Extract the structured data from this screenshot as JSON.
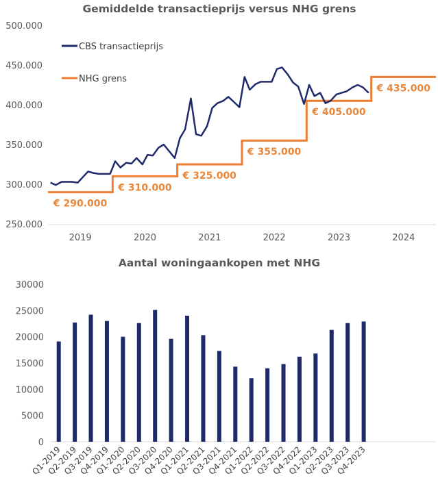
{
  "colors": {
    "cbs": "#1f2a6b",
    "nhg": "#ed7d31",
    "anno": "#e8863a",
    "axis": "#d9d9d9",
    "bar": "#1f2a6b"
  },
  "chart_data": [
    {
      "type": "line",
      "title": "Gemiddelde transactieprijs versus NHG grens",
      "ylim": [
        250000,
        500000
      ],
      "xlim": [
        2018.5,
        2024.5
      ],
      "yticks": [
        "250.000",
        "300.000",
        "350.000",
        "400.000",
        "450.000",
        "500.000"
      ],
      "xticks": [
        {
          "x": 2019,
          "label": "2019"
        },
        {
          "x": 2020,
          "label": "2020"
        },
        {
          "x": 2021,
          "label": "2021"
        },
        {
          "x": 2022,
          "label": "2022"
        },
        {
          "x": 2023,
          "label": "2023"
        },
        {
          "x": 2024,
          "label": "2024"
        }
      ],
      "legend_position": "top-left",
      "series": [
        {
          "name": "CBS transactieprijs",
          "x": [
            2018.54,
            2018.62,
            2018.71,
            2018.79,
            2018.87,
            2018.96,
            2019.04,
            2019.12,
            2019.21,
            2019.29,
            2019.37,
            2019.46,
            2019.54,
            2019.62,
            2019.71,
            2019.79,
            2019.87,
            2019.96,
            2020.04,
            2020.12,
            2020.21,
            2020.29,
            2020.37,
            2020.46,
            2020.54,
            2020.62,
            2020.71,
            2020.79,
            2020.87,
            2020.96,
            2021.04,
            2021.12,
            2021.21,
            2021.29,
            2021.37,
            2021.46,
            2021.54,
            2021.62,
            2021.71,
            2021.79,
            2021.87,
            2021.96,
            2022.04,
            2022.12,
            2022.21,
            2022.29,
            2022.37,
            2022.46,
            2022.54,
            2022.62,
            2022.71,
            2022.79,
            2022.87,
            2022.96,
            2023.04,
            2023.12,
            2023.21,
            2023.29,
            2023.37,
            2023.46
          ],
          "values": [
            302000,
            299000,
            303000,
            303000,
            303000,
            302000,
            309000,
            316000,
            314000,
            313000,
            313000,
            313000,
            329000,
            321000,
            327000,
            326000,
            333000,
            325000,
            337000,
            336000,
            346000,
            350000,
            342000,
            333000,
            358000,
            369000,
            408000,
            363000,
            361000,
            373000,
            396000,
            402000,
            405000,
            410000,
            404000,
            397000,
            435000,
            419000,
            426000,
            429000,
            429000,
            429000,
            445000,
            447000,
            438000,
            428000,
            423000,
            401000,
            425000,
            411000,
            415000,
            402000,
            405000,
            413000,
            415000,
            417000,
            422000,
            425000,
            422000,
            415000
          ]
        },
        {
          "name": "NHG grens",
          "step": true,
          "x": [
            2018.5,
            2019.5,
            2019.5,
            2020.5,
            2020.5,
            2021.5,
            2021.5,
            2022.5,
            2022.5,
            2023.5,
            2023.5,
            2024.5
          ],
          "values": [
            290000,
            290000,
            310000,
            310000,
            325000,
            325000,
            355000,
            355000,
            405000,
            405000,
            435000,
            435000
          ]
        }
      ],
      "annotations": [
        {
          "text": "€ 290.000",
          "x": 2018.52,
          "y": 290000
        },
        {
          "text": "€ 310.000",
          "x": 2019.52,
          "y": 310000
        },
        {
          "text": "€ 325.000",
          "x": 2020.52,
          "y": 325000
        },
        {
          "text": "€ 355.000",
          "x": 2021.52,
          "y": 355000
        },
        {
          "text": "€ 405.000",
          "x": 2022.52,
          "y": 405000
        },
        {
          "text": "€ 435.000",
          "x": 2023.52,
          "y": 435000
        }
      ]
    },
    {
      "type": "bar",
      "title": "Aantal woningaankopen met NHG",
      "ylim": [
        0,
        30000
      ],
      "yticks": [
        "0",
        "5000",
        "10000",
        "15000",
        "20000",
        "25000",
        "30000"
      ],
      "categories": [
        "Q1-2019",
        "Q2-2019",
        "Q3-2019",
        "Q4-2019",
        "Q1-2020",
        "Q2-2020",
        "Q3-2020",
        "Q4-2020",
        "Q1-2021",
        "Q2-2021",
        "Q3-2021",
        "Q4-2021",
        "Q1-2022",
        "Q2-2022",
        "Q3-2022",
        "Q4-2022",
        "Q1-2023",
        "Q2-2023",
        "Q3-2023",
        "Q4-2023"
      ],
      "values": [
        19100,
        22700,
        24200,
        23000,
        20000,
        22600,
        25100,
        19600,
        24000,
        20300,
        17300,
        14300,
        12100,
        14000,
        14800,
        16200,
        16800,
        21300,
        22600,
        22900
      ],
      "extra_empty_slots": 4
    }
  ]
}
